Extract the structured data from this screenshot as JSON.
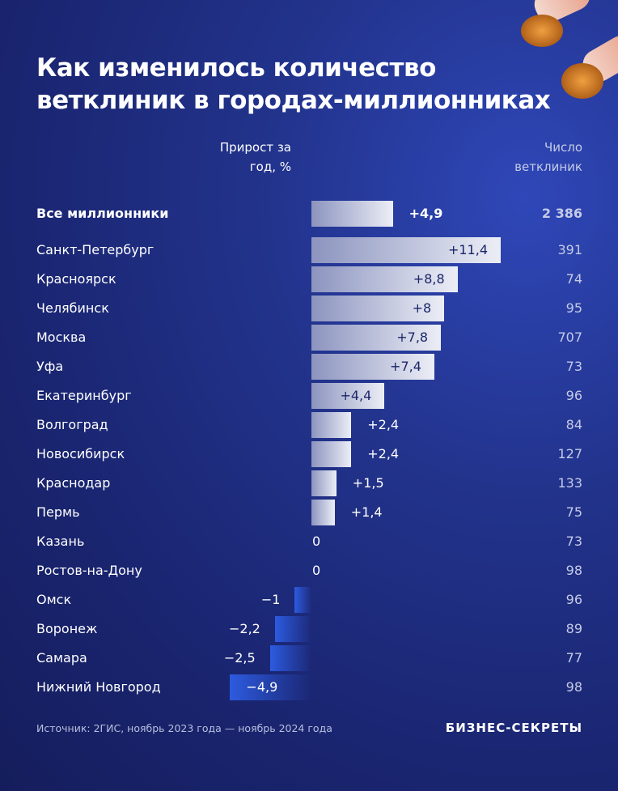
{
  "chart_data": {
    "type": "bar",
    "orientation": "horizontal",
    "title": "Как изменилось количество ветклиник в городах-миллионниках",
    "categories": [
      "Все миллионники",
      "Санкт-Петербург",
      "Красноярск",
      "Челябинск",
      "Москва",
      "Уфа",
      "Екатеринбург",
      "Волгоград",
      "Новосибирск",
      "Краснодар",
      "Пермь",
      "Казань",
      "Ростов-на-Дону",
      "Омск",
      "Воронеж",
      "Самара",
      "Нижний Новгород"
    ],
    "series": [
      {
        "name": "Прирост за год, %",
        "color": "#eceef6",
        "negative_color": "#2d5be0",
        "values": [
          4.9,
          11.4,
          8.8,
          8,
          7.8,
          7.4,
          4.4,
          2.4,
          2.4,
          1.5,
          1.4,
          0,
          0,
          -1,
          -2.2,
          -2.5,
          -4.9
        ],
        "value_labels": [
          "+4,9",
          "+11,4",
          "+8,8",
          "+8",
          "+7,8",
          "+7,4",
          "+4,4",
          "+2,4",
          "+2,4",
          "+1,5",
          "+1,4",
          "0",
          "0",
          "−1",
          "−2,2",
          "−2,5",
          "−4,9"
        ]
      },
      {
        "name": "Число ветклиник",
        "values": [
          2386,
          391,
          74,
          95,
          707,
          73,
          96,
          84,
          127,
          133,
          75,
          73,
          98,
          96,
          89,
          77,
          98
        ],
        "value_labels": [
          "2 386",
          "391",
          "74",
          "95",
          "707",
          "73",
          "96",
          "84",
          "127",
          "133",
          "75",
          "73",
          "98",
          "96",
          "89",
          "77",
          "98"
        ]
      }
    ],
    "source": "Источник: 2ГИС, ноябрь 2023 года — ноябрь 2024 года",
    "brand": "БИЗНЕС-СЕКРЕТЫ"
  }
}
